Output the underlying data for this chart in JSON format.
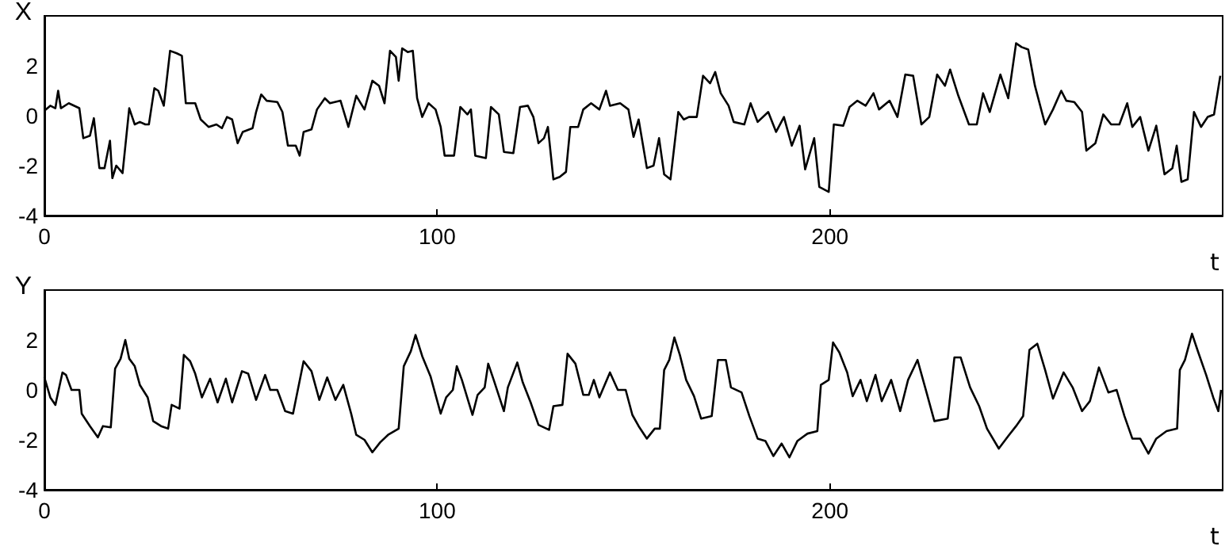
{
  "chart_data": [
    {
      "type": "line",
      "ylabel": "X",
      "xlabel": "t",
      "xlim": [
        0,
        300
      ],
      "xticks": [
        0,
        100,
        200
      ],
      "ylim": [
        -4,
        4
      ],
      "yticks": [
        -4,
        -2,
        0,
        2
      ],
      "grid": false,
      "marker": "none",
      "line_style": "solid",
      "series": [
        {
          "color": "#000000",
          "x": [
            0,
            1.5,
            2.8,
            3.5,
            4.2,
            6.2,
            8.9,
            9.9,
            11.6,
            12.6,
            14,
            15.3,
            16.7,
            17.3,
            18.3,
            19.9,
            21.6,
            23,
            24.3,
            25.7,
            26.6,
            28,
            29,
            30.4,
            32,
            33.7,
            35,
            36,
            38.4,
            39.8,
            41.8,
            43.8,
            45.2,
            46.5,
            47.8,
            49.2,
            50.5,
            53,
            53.9,
            55.2,
            56.6,
            59.3,
            60.6,
            62,
            64,
            65,
            66,
            68,
            69.4,
            71.4,
            72.7,
            75.4,
            77.4,
            79.4,
            81.5,
            83.5,
            85.2,
            86.6,
            88,
            89.5,
            90.2,
            91.1,
            92.5,
            93.8,
            94.9,
            96.2,
            97.8,
            99.6,
            100.9,
            101.9,
            104.3,
            105.9,
            107.7,
            108.6,
            109.7,
            112.4,
            113.7,
            115.7,
            117,
            119.4,
            121.1,
            123.1,
            124.5,
            125.8,
            127.2,
            128.2,
            129.6,
            131.2,
            132.8,
            133.9,
            135.9,
            137.2,
            139.2,
            141.3,
            143,
            144,
            146.6,
            148.7,
            150,
            151.3,
            153.4,
            155.1,
            156.5,
            157.8,
            159.4,
            161.4,
            162.8,
            164.1,
            166.1,
            167.7,
            169.5,
            170.8,
            172.2,
            174.2,
            175.5,
            178.2,
            179.8,
            181.6,
            184.3,
            186.3,
            188.3,
            190.3,
            192.3,
            193.7,
            196,
            197.3,
            199.7,
            201,
            203.4,
            205,
            207,
            209.1,
            211.1,
            212.5,
            215.2,
            217.2,
            219.2,
            221.2,
            223.3,
            225.3,
            227.3,
            229.3,
            230.6,
            232.7,
            235.4,
            237.4,
            239,
            240.7,
            243.4,
            245.4,
            247.4,
            248.8,
            250.5,
            252.2,
            254.8,
            256.8,
            258.9,
            260.2,
            262.2,
            264.2,
            265.3,
            267.6,
            269.6,
            271.6,
            273.7,
            275.7,
            277,
            279,
            281.1,
            283.1,
            285.2,
            287.2,
            288.3,
            289.5,
            291.1,
            292.7,
            294.5,
            296.2,
            297.8,
            299.4
          ],
          "values": [
            0.2,
            0.4,
            0.3,
            1.0,
            0.3,
            0.5,
            0.3,
            -0.9,
            -0.8,
            -0.1,
            -2.1,
            -2.1,
            -1.0,
            -2.5,
            -2.0,
            -2.3,
            0.3,
            -0.35,
            -0.25,
            -0.35,
            -0.35,
            1.1,
            1.0,
            0.4,
            2.6,
            2.5,
            2.4,
            0.5,
            0.5,
            -0.15,
            -0.45,
            -0.35,
            -0.5,
            -0.05,
            -0.15,
            -1.1,
            -0.65,
            -0.5,
            0.15,
            0.85,
            0.6,
            0.55,
            0.15,
            -1.2,
            -1.2,
            -1.6,
            -0.65,
            -0.55,
            0.25,
            0.7,
            0.5,
            0.6,
            -0.45,
            0.8,
            0.25,
            1.4,
            1.2,
            0.5,
            2.6,
            2.35,
            1.4,
            2.7,
            2.55,
            2.6,
            0.7,
            -0.05,
            0.5,
            0.25,
            -0.45,
            -1.6,
            -1.6,
            0.35,
            0.05,
            0.25,
            -1.6,
            -1.7,
            0.35,
            0.05,
            -1.45,
            -1.5,
            0.35,
            0.4,
            -0.05,
            -1.1,
            -0.9,
            -0.45,
            -2.55,
            -2.45,
            -2.25,
            -0.45,
            -0.45,
            0.25,
            0.5,
            0.25,
            1.0,
            0.4,
            0.5,
            0.25,
            -0.85,
            -0.15,
            -2.1,
            -2.0,
            -0.9,
            -2.35,
            -2.55,
            0.15,
            -0.15,
            -0.05,
            -0.05,
            1.6,
            1.3,
            1.75,
            0.9,
            0.4,
            -0.25,
            -0.35,
            0.5,
            -0.25,
            0.15,
            -0.65,
            -0.05,
            -1.2,
            -0.4,
            -2.15,
            -0.9,
            -2.85,
            -3.05,
            -0.35,
            -0.4,
            0.35,
            0.6,
            0.4,
            0.9,
            0.25,
            0.6,
            -0.05,
            1.65,
            1.6,
            -0.35,
            -0.05,
            1.65,
            1.2,
            1.85,
            0.8,
            -0.35,
            -0.35,
            0.9,
            0.15,
            1.65,
            0.7,
            2.9,
            2.75,
            2.65,
            1.2,
            -0.35,
            0.25,
            1.0,
            0.6,
            0.55,
            0.15,
            -1.4,
            -1.1,
            0.05,
            -0.35,
            -0.35,
            0.5,
            -0.45,
            -0.05,
            -1.4,
            -0.4,
            -2.35,
            -2.1,
            -1.2,
            -2.65,
            -2.55,
            0.15,
            -0.45,
            -0.05,
            0.05,
            1.6
          ]
        }
      ]
    },
    {
      "type": "line",
      "ylabel": "Y",
      "xlabel": "t",
      "xlim": [
        0,
        300
      ],
      "xticks": [
        0,
        100,
        200
      ],
      "ylim": [
        -4,
        4
      ],
      "yticks": [
        -4,
        -2,
        0,
        2
      ],
      "grid": false,
      "marker": "none",
      "line_style": "solid",
      "series": [
        {
          "color": "#000000",
          "x": [
            0,
            1.5,
            2.8,
            4.6,
            5.5,
            6.9,
            8.9,
            9.5,
            11.6,
            13.6,
            14.9,
            16.9,
            18,
            19.4,
            20.6,
            21.6,
            23,
            24.3,
            26.3,
            27.7,
            29.7,
            31.5,
            32.4,
            34.4,
            35.5,
            37.1,
            38.4,
            40.1,
            42.2,
            44.1,
            46.2,
            47.8,
            50.3,
            51.9,
            53.9,
            56.2,
            57.5,
            59.3,
            61.3,
            63.3,
            66,
            68,
            70,
            72,
            74.1,
            76.1,
            78.1,
            79.4,
            81.5,
            83.5,
            85.5,
            87.5,
            90.2,
            91.5,
            93.3,
            94.5,
            96.2,
            98.3,
            100.9,
            102.3,
            104,
            105,
            106.3,
            109,
            110.3,
            112.1,
            113,
            114.4,
            117,
            118,
            120.4,
            121.8,
            123.8,
            125.8,
            128.5,
            129.6,
            131.9,
            133.2,
            135.2,
            137.2,
            138.6,
            139.9,
            141.3,
            144,
            146,
            148,
            149.7,
            151.3,
            153.4,
            155.4,
            156.7,
            157.8,
            159.1,
            160.4,
            161.8,
            163.4,
            165.4,
            167.2,
            169.9,
            171.5,
            173.5,
            174.8,
            177.5,
            179.5,
            181.6,
            183.6,
            185.6,
            187.7,
            189.7,
            191.7,
            194.3,
            196.8,
            197.7,
            199.7,
            200.8,
            202.4,
            204.4,
            205.8,
            207.8,
            209.4,
            211.6,
            213.2,
            215.6,
            217.9,
            219.9,
            222.3,
            224.6,
            226.6,
            230,
            231.7,
            233.3,
            235.7,
            238,
            240,
            243,
            245.4,
            247.4,
            249.2,
            250.8,
            252.8,
            254.8,
            256.8,
            259.5,
            261.8,
            264.2,
            266.2,
            268.5,
            270.9,
            273,
            275,
            277,
            279,
            281.1,
            283.1,
            285.7,
            288.4,
            289.1,
            290.4,
            292.2,
            293.8,
            295.8,
            297.6,
            298.9,
            299.6
          ],
          "values": [
            0.5,
            -0.3,
            -0.6,
            0.7,
            0.6,
            0,
            0,
            -0.95,
            -1.45,
            -1.9,
            -1.45,
            -1.5,
            0.85,
            1.25,
            2.0,
            1.25,
            0.95,
            0.2,
            -0.3,
            -1.25,
            -1.45,
            -1.55,
            -0.6,
            -0.75,
            1.4,
            1.15,
            0.65,
            -0.3,
            0.45,
            -0.5,
            0.45,
            -0.5,
            0.75,
            0.65,
            -0.4,
            0.6,
            0,
            0,
            -0.85,
            -0.95,
            1.15,
            0.75,
            -0.4,
            0.5,
            -0.4,
            0.2,
            -0.95,
            -1.8,
            -2.0,
            -2.5,
            -2.1,
            -1.8,
            -1.55,
            0.95,
            1.55,
            2.2,
            1.35,
            0.55,
            -0.95,
            -0.3,
            0,
            0.95,
            0.4,
            -1.0,
            -0.2,
            0.1,
            1.05,
            0.4,
            -0.85,
            0.1,
            1.1,
            0.3,
            -0.5,
            -1.4,
            -1.6,
            -0.65,
            -0.6,
            1.45,
            1.05,
            -0.2,
            -0.2,
            0.4,
            -0.3,
            0.7,
            0,
            0,
            -1.0,
            -1.45,
            -1.95,
            -1.55,
            -1.55,
            0.8,
            1.2,
            2.1,
            1.4,
            0.4,
            -0.25,
            -1.15,
            -1.05,
            1.2,
            1.2,
            0.1,
            -0.1,
            -1.05,
            -1.95,
            -2.05,
            -2.65,
            -2.15,
            -2.7,
            -2.05,
            -1.75,
            -1.65,
            0.2,
            0.4,
            1.9,
            1.5,
            0.7,
            -0.25,
            0.4,
            -0.45,
            0.6,
            -0.45,
            0.4,
            -0.85,
            0.4,
            1.2,
            -0.1,
            -1.25,
            -1.15,
            1.3,
            1.3,
            0.1,
            -0.65,
            -1.55,
            -2.35,
            -1.85,
            -1.45,
            -1.05,
            1.6,
            1.85,
            0.8,
            -0.35,
            0.7,
            0.1,
            -0.85,
            -0.45,
            0.9,
            -0.1,
            0,
            -1.05,
            -1.95,
            -1.95,
            -2.55,
            -1.95,
            -1.65,
            -1.55,
            0.8,
            1.2,
            2.25,
            1.5,
            0.6,
            -0.3,
            -0.85,
            0.0
          ]
        }
      ]
    }
  ]
}
